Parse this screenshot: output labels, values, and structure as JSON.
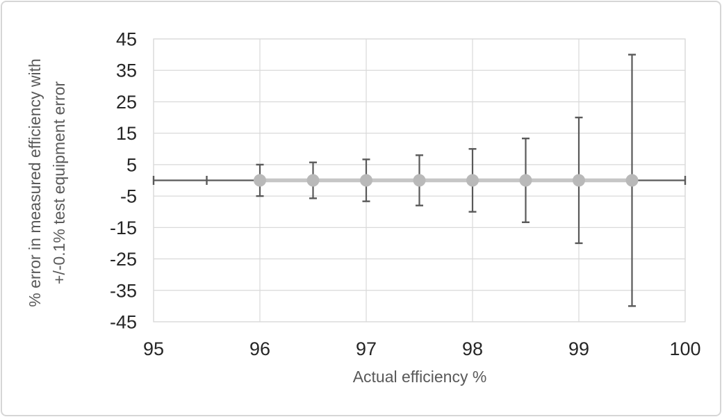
{
  "figure": {
    "background": "#ffffff",
    "frame_color": "#d6d6d6"
  },
  "chart_data": {
    "type": "scatter",
    "title": "",
    "xlabel": "Actual efficiency %",
    "ylabel_lines": [
      "% error in measured efficiency with",
      "+/-0.1% test equipment error"
    ],
    "xlim": [
      95,
      100
    ],
    "ylim": [
      -45,
      45
    ],
    "x_ticks": [
      95,
      96,
      97,
      98,
      99,
      100
    ],
    "y_ticks": [
      45,
      35,
      25,
      15,
      5,
      -5,
      -15,
      -25,
      -35,
      -45
    ],
    "grid": true,
    "legend": "none",
    "series": [
      {
        "name": "% error in measured efficiency",
        "x": [
          96,
          96.5,
          97,
          97.5,
          98,
          98.5,
          99,
          99.5
        ],
        "y": [
          0,
          0,
          0,
          0,
          0,
          0,
          0,
          0
        ],
        "y_err": [
          5,
          5.71,
          6.67,
          8,
          10,
          13.33,
          20,
          40
        ],
        "x_err": 0.5,
        "marker": "circle"
      }
    ],
    "baseline": {
      "y": 0,
      "x_start": 95,
      "x_end": 100,
      "cap_positions": [
        95,
        95.5,
        100
      ]
    },
    "colors": {
      "marker": "#b9b9b9",
      "series_line": "#c6c6c6",
      "error_bar": "#595959",
      "gridline": "#d9d9d9",
      "tick_label": "#262626",
      "axis_title": "#595959"
    }
  }
}
